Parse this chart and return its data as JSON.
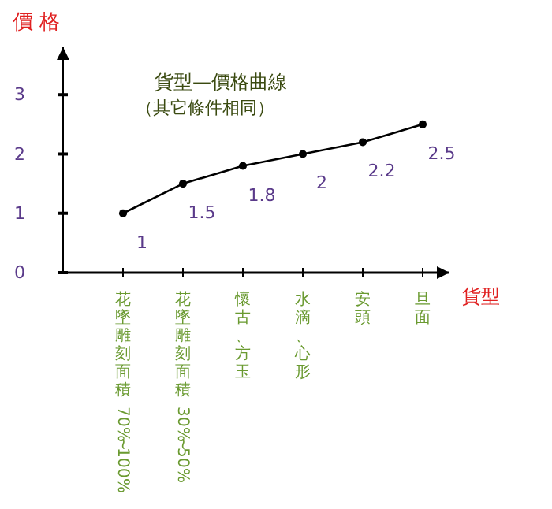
{
  "chart_data": {
    "type": "line",
    "title": "貨型—價格曲線",
    "subtitle": "（其它條件相同）",
    "ylabel": "價 格",
    "xlabel": "貨型",
    "categories": [
      "花墜雕刻面積 70%~100%",
      "花墜雕刻面積 30%~50%",
      "懷古、方玉",
      "水滴、心形",
      "安頭",
      "旦面"
    ],
    "series": [
      {
        "color": "#000000",
        "values": [
          1,
          1.5,
          1.8,
          2,
          2.2,
          2.5
        ]
      }
    ],
    "ylim": [
      0,
      3.8
    ],
    "yticks": [
      0,
      1,
      2,
      3
    ],
    "grid": false,
    "marker": "circle",
    "line_style": "solid",
    "data_labels": true
  }
}
